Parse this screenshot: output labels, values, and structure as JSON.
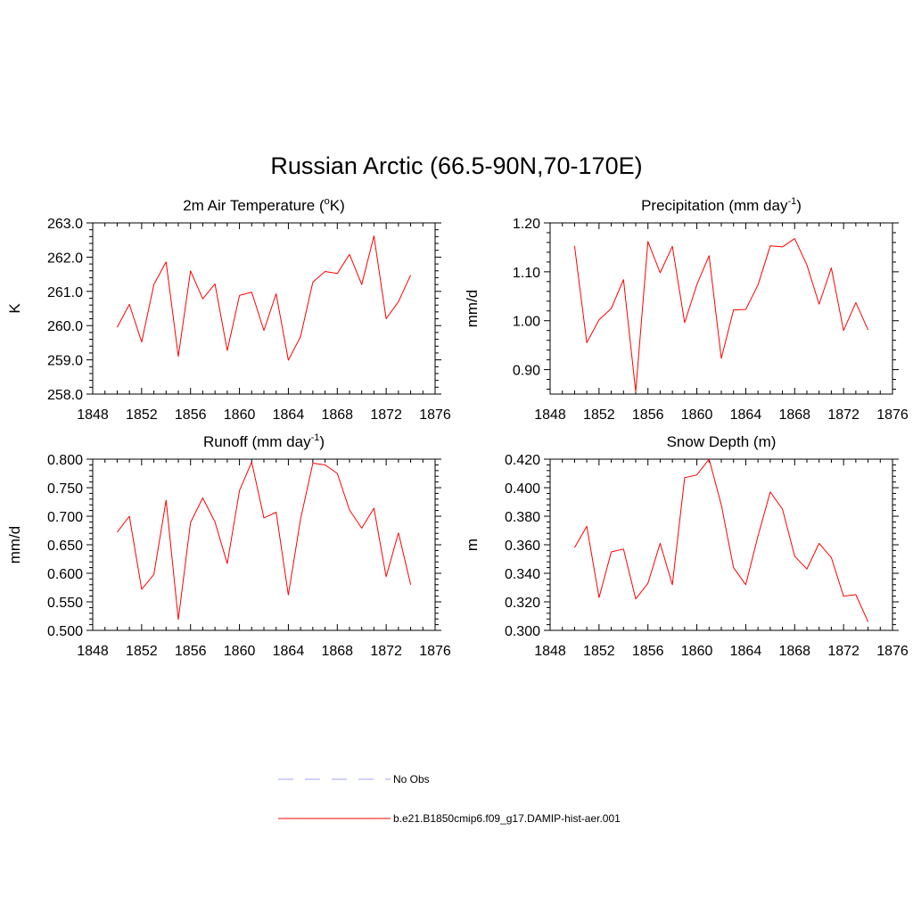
{
  "title": "Russian Arctic (66.5-90N,70-170E)",
  "colors": {
    "model_line": "#ff0000",
    "obs_line": "#a0a0ff",
    "frame": "#000000"
  },
  "legend": {
    "obs_label": "No Obs",
    "model_label": "b.e21.B1850cmip6.f09_g17.DAMIP-hist-aer.001"
  },
  "chart_data": [
    {
      "type": "line",
      "title": "2m Air Temperature (",
      "title_sup": "o",
      "title_after": "K)",
      "title_sup2": "",
      "title_end": "",
      "ylabel": "K",
      "xlim": [
        1848,
        1876
      ],
      "ylim": [
        258.0,
        263.0
      ],
      "xticks": [
        1848,
        1852,
        1856,
        1860,
        1864,
        1868,
        1872,
        1876
      ],
      "yticks": [
        "258.0",
        "259.0",
        "260.0",
        "261.0",
        "262.0",
        "263.0"
      ],
      "ytick_values": [
        258,
        259,
        260,
        261,
        262,
        263
      ],
      "series": [
        {
          "x": [
            1850,
            1851,
            1852,
            1853,
            1854,
            1855,
            1856,
            1857,
            1858,
            1859,
            1860,
            1861,
            1862,
            1863,
            1864,
            1865,
            1866,
            1867,
            1868,
            1869,
            1870,
            1871,
            1872,
            1873,
            1874
          ],
          "values": [
            259.95,
            260.62,
            259.52,
            261.2,
            261.86,
            259.1,
            261.6,
            260.78,
            261.22,
            259.27,
            260.88,
            260.98,
            259.86,
            260.93,
            258.99,
            259.68,
            261.27,
            261.58,
            261.52,
            262.08,
            261.2,
            262.62,
            260.2,
            260.7,
            261.48
          ]
        }
      ]
    },
    {
      "type": "line",
      "title": "Precipitation (mm day",
      "title_sup": "-1",
      "title_after": ")",
      "title_sup2": "",
      "title_end": "",
      "ylabel": "mm/d",
      "xlim": [
        1848,
        1876
      ],
      "ylim": [
        0.85,
        1.2
      ],
      "xticks": [
        1848,
        1852,
        1856,
        1860,
        1864,
        1868,
        1872,
        1876
      ],
      "yticks": [
        "0.90",
        "1.00",
        "1.10",
        "1.20"
      ],
      "ytick_values": [
        0.9,
        1.0,
        1.1,
        1.2
      ],
      "series": [
        {
          "x": [
            1850,
            1851,
            1852,
            1853,
            1854,
            1855,
            1856,
            1857,
            1858,
            1859,
            1860,
            1861,
            1862,
            1863,
            1864,
            1865,
            1866,
            1867,
            1868,
            1869,
            1870,
            1871,
            1872,
            1873,
            1874
          ],
          "values": [
            1.153,
            0.955,
            1.002,
            1.025,
            1.084,
            0.855,
            1.162,
            1.098,
            1.152,
            0.996,
            1.074,
            1.133,
            0.923,
            1.022,
            1.023,
            1.073,
            1.153,
            1.151,
            1.168,
            1.114,
            1.034,
            1.108,
            0.98,
            1.037,
            0.981
          ]
        }
      ]
    },
    {
      "type": "line",
      "title": "Runoff (mm day",
      "title_sup": "-1",
      "title_after": ")",
      "title_sup2": "",
      "title_end": "",
      "ylabel": "mm/d",
      "xlim": [
        1848,
        1876
      ],
      "ylim": [
        0.5,
        0.8
      ],
      "xticks": [
        1848,
        1852,
        1856,
        1860,
        1864,
        1868,
        1872,
        1876
      ],
      "yticks": [
        "0.500",
        "0.550",
        "0.600",
        "0.650",
        "0.700",
        "0.750",
        "0.800"
      ],
      "ytick_values": [
        0.5,
        0.55,
        0.6,
        0.65,
        0.7,
        0.75,
        0.8
      ],
      "series": [
        {
          "x": [
            1850,
            1851,
            1852,
            1853,
            1854,
            1855,
            1856,
            1857,
            1858,
            1859,
            1860,
            1861,
            1862,
            1863,
            1864,
            1865,
            1866,
            1867,
            1868,
            1869,
            1870,
            1871,
            1872,
            1873,
            1874
          ],
          "values": [
            0.672,
            0.7,
            0.572,
            0.598,
            0.728,
            0.519,
            0.689,
            0.732,
            0.69,
            0.617,
            0.745,
            0.795,
            0.697,
            0.707,
            0.562,
            0.695,
            0.793,
            0.79,
            0.775,
            0.711,
            0.679,
            0.714,
            0.594,
            0.671,
            0.58
          ]
        }
      ]
    },
    {
      "type": "line",
      "title": "Snow Depth (m)",
      "title_sup": "",
      "title_after": "",
      "title_sup2": "",
      "title_end": "",
      "ylabel": "m",
      "xlim": [
        1848,
        1876
      ],
      "ylim": [
        0.3,
        0.42
      ],
      "xticks": [
        1848,
        1852,
        1856,
        1860,
        1864,
        1868,
        1872,
        1876
      ],
      "yticks": [
        "0.300",
        "0.320",
        "0.340",
        "0.360",
        "0.380",
        "0.400",
        "0.420"
      ],
      "ytick_values": [
        0.3,
        0.32,
        0.34,
        0.36,
        0.38,
        0.4,
        0.42
      ],
      "series": [
        {
          "x": [
            1850,
            1851,
            1852,
            1853,
            1854,
            1855,
            1856,
            1857,
            1858,
            1859,
            1860,
            1861,
            1862,
            1863,
            1864,
            1865,
            1866,
            1867,
            1868,
            1869,
            1870,
            1871,
            1872,
            1873,
            1874
          ],
          "values": [
            0.358,
            0.373,
            0.323,
            0.355,
            0.357,
            0.322,
            0.333,
            0.361,
            0.332,
            0.407,
            0.409,
            0.42,
            0.388,
            0.344,
            0.332,
            0.366,
            0.397,
            0.385,
            0.352,
            0.343,
            0.361,
            0.351,
            0.324,
            0.325,
            0.306
          ]
        }
      ]
    }
  ]
}
